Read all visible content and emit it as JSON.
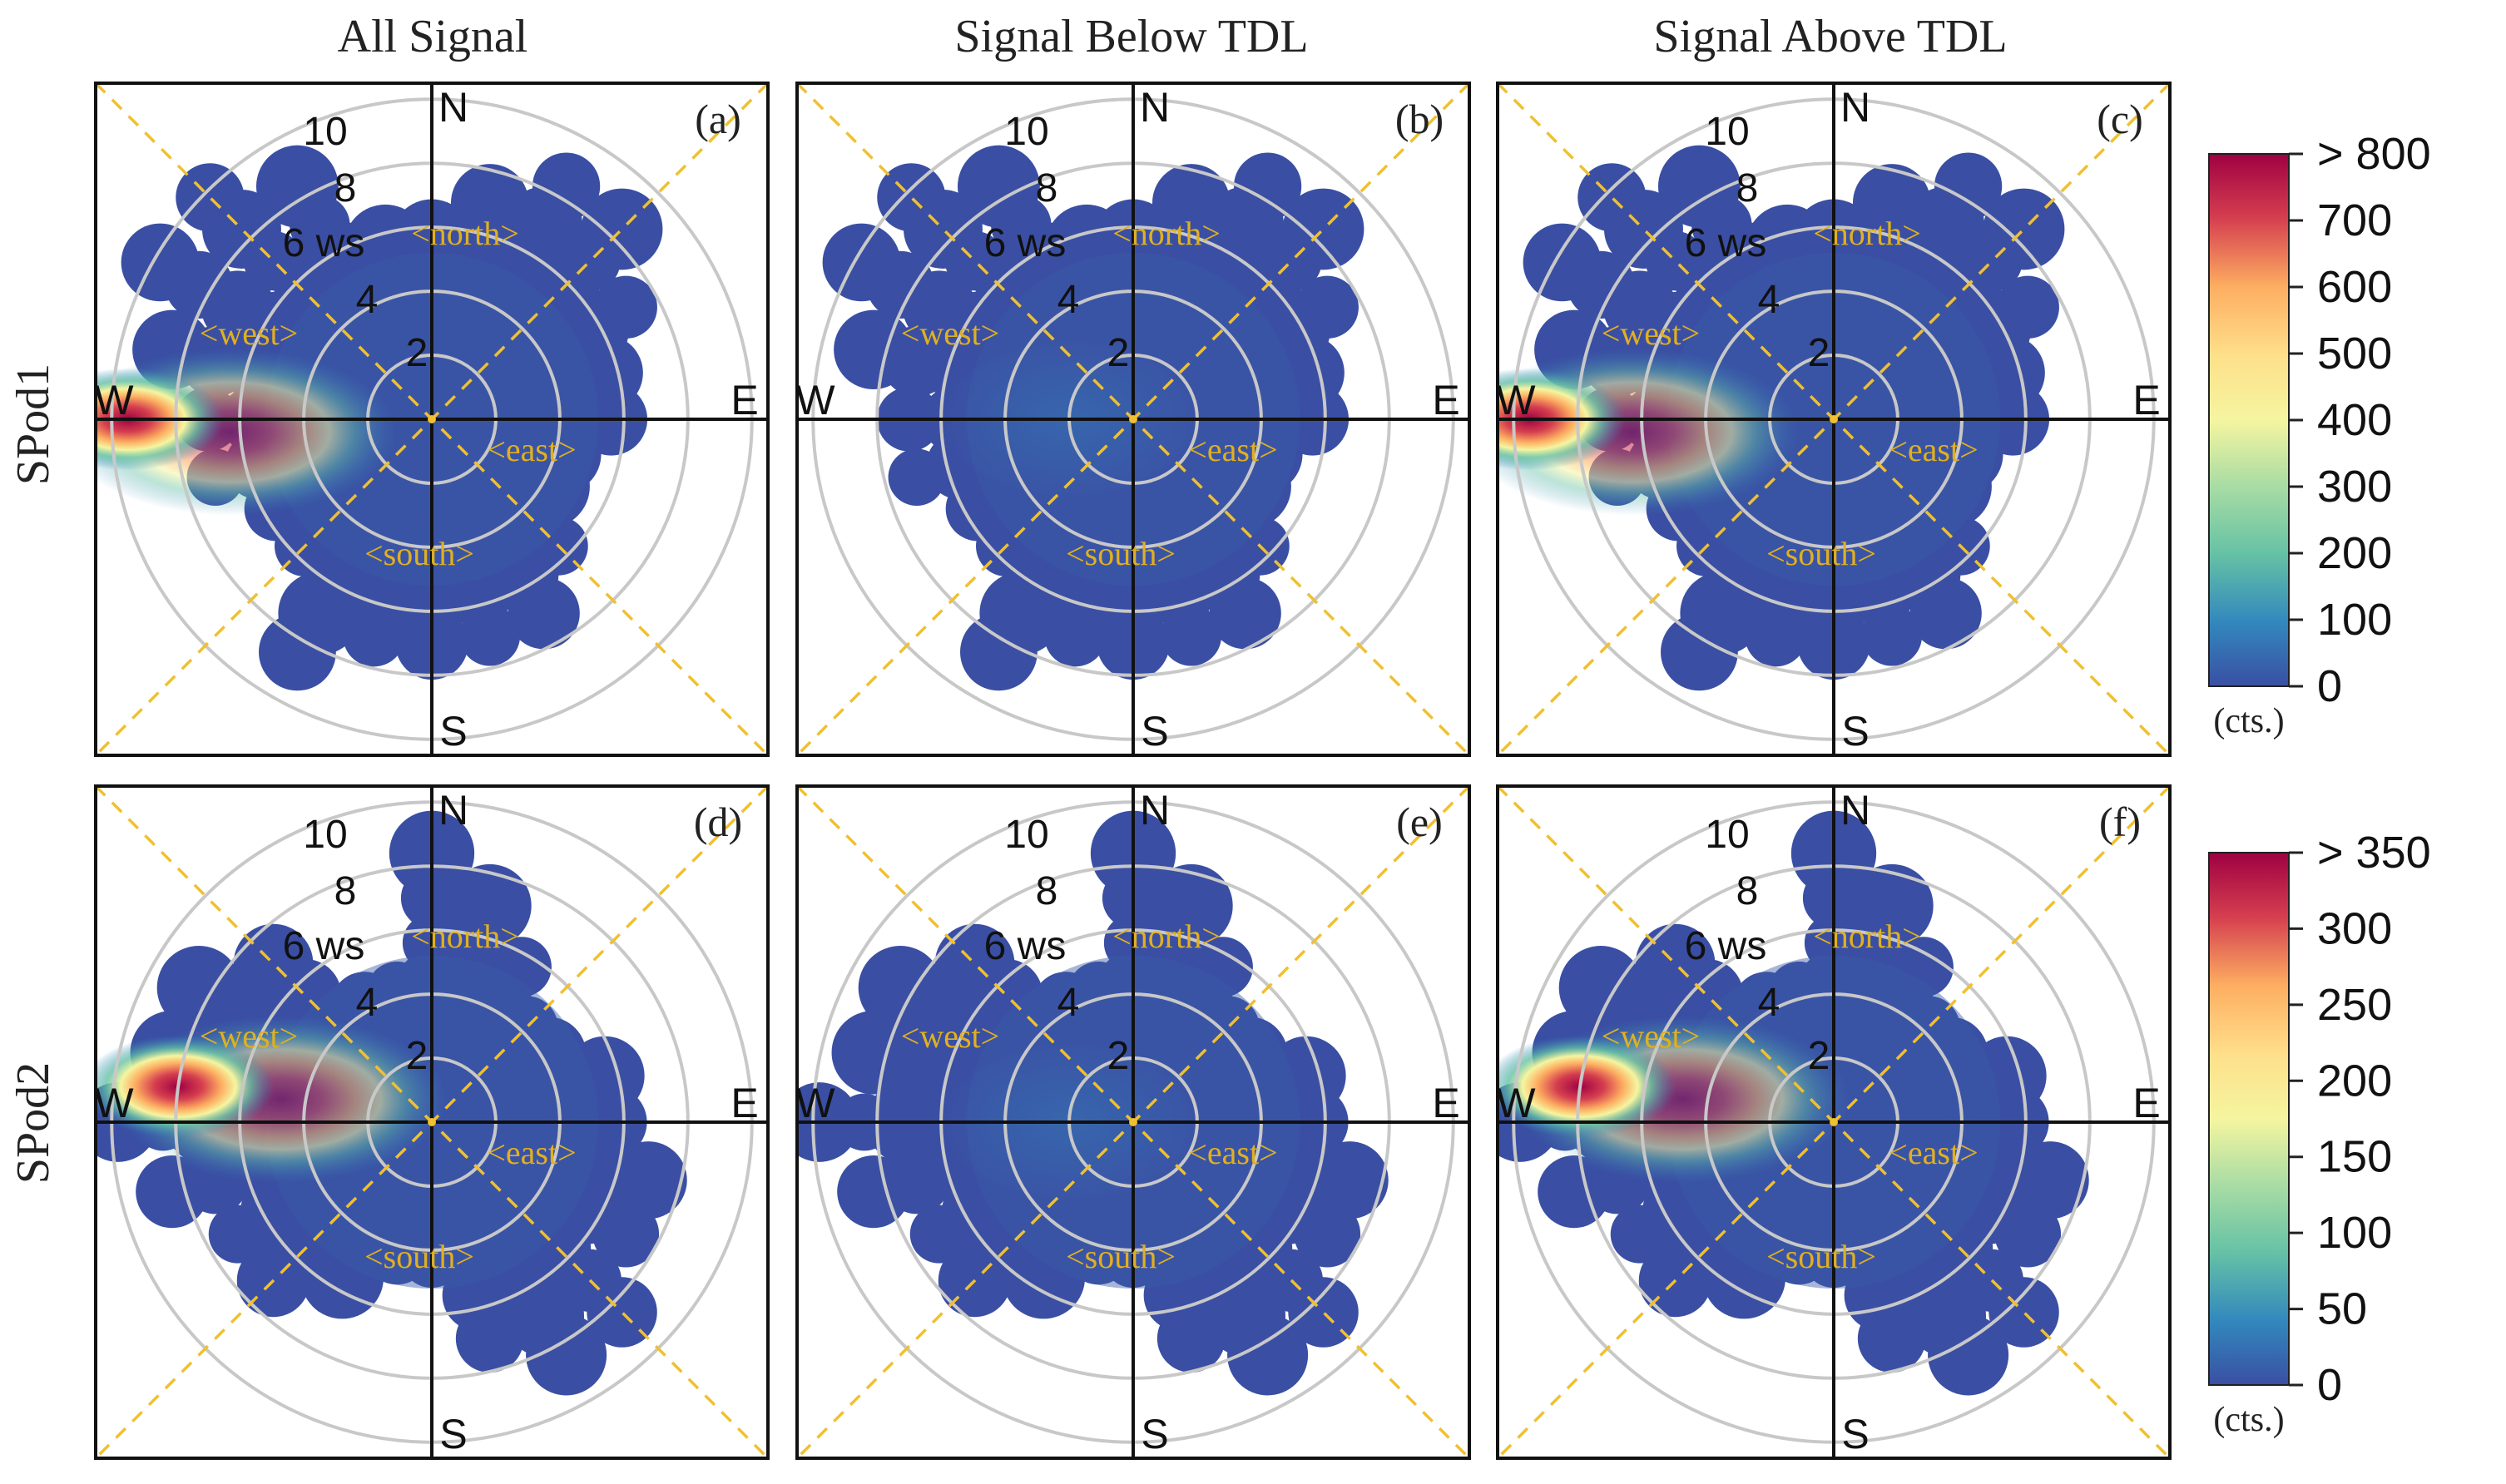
{
  "chart_data": {
    "type": "polar",
    "description_units": "counts",
    "column_titles": [
      "All Signal",
      "Signal Below TDL",
      "Signal Above TDL"
    ],
    "row_labels": [
      "SPod1",
      "SPod2"
    ],
    "compass": [
      "N",
      "E",
      "S",
      "W"
    ],
    "sector_labels": [
      "<north>",
      "<east>",
      "<south>",
      "<west>"
    ],
    "radial_label_suffix": "ws",
    "radial_ticks": [
      2,
      4,
      6,
      8,
      10
    ],
    "panels": [
      {
        "label": "(a)",
        "row": 0,
        "col": 0,
        "hotspot": {
          "direction_deg": 270,
          "ws": 9.5,
          "value": 800
        }
      },
      {
        "label": "(b)",
        "row": 0,
        "col": 1,
        "hotspot": null
      },
      {
        "label": "(c)",
        "row": 0,
        "col": 2,
        "hotspot": {
          "direction_deg": 270,
          "ws": 9.5,
          "value": 800
        }
      },
      {
        "label": "(d)",
        "row": 1,
        "col": 0,
        "hotspot": {
          "direction_deg": 278,
          "ws": 8.0,
          "value": 350
        }
      },
      {
        "label": "(e)",
        "row": 1,
        "col": 1,
        "hotspot": null
      },
      {
        "label": "(f)",
        "row": 1,
        "col": 2,
        "hotspot": {
          "direction_deg": 278,
          "ws": 8.0,
          "value": 350
        }
      }
    ],
    "colorbars": [
      {
        "row": "SPod1",
        "ticks": [
          "> 800",
          "700",
          "600",
          "500",
          "400",
          "300",
          "200",
          "100",
          "0"
        ],
        "range": [
          0,
          800
        ],
        "unit": "(cts.)"
      },
      {
        "row": "SPod2",
        "ticks": [
          "> 350",
          "300",
          "250",
          "200",
          "150",
          "100",
          "50",
          "0"
        ],
        "range": [
          0,
          350
        ],
        "unit": "(cts.)"
      }
    ]
  },
  "colors": {
    "low": "#3a4fa3",
    "mid": "#f5e77e",
    "high": "#9e0142",
    "grid": "#c8c8c8",
    "diagonal": "#f0c030",
    "sector_text": "#e0b020"
  }
}
